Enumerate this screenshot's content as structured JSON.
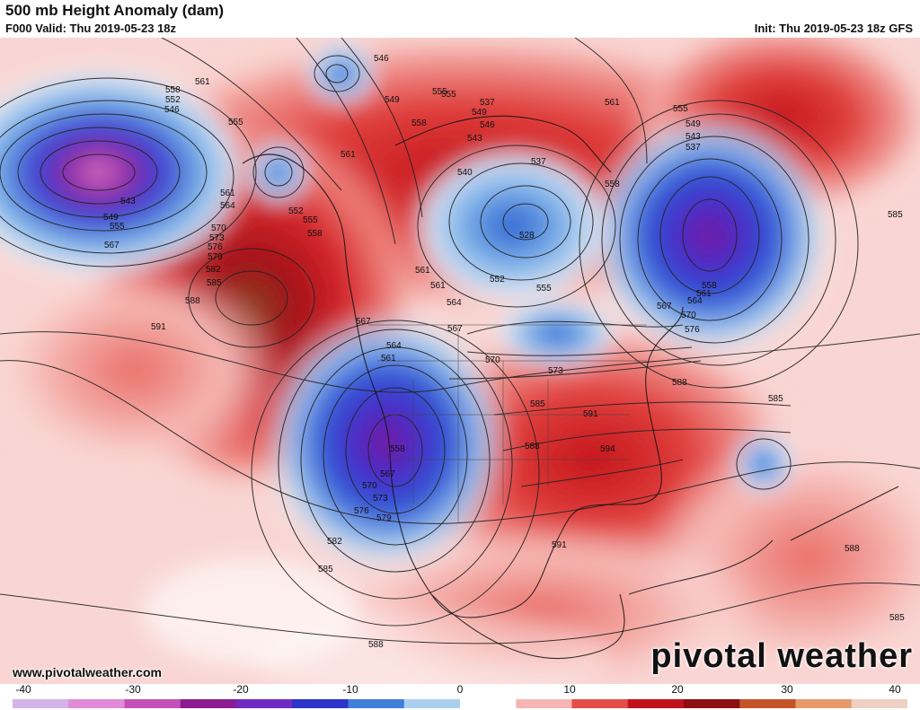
{
  "header": {
    "title": "500 mb Height Anomaly (dam)",
    "valid": "F000 Valid: Thu 2019-05-23 18z",
    "init": "Init: Thu 2019-05-23 18z GFS"
  },
  "footer": {
    "website": "www.pivotalweather.com",
    "brand": "pivotal weather"
  },
  "colorbar": {
    "ticks": [
      "-40",
      "-30",
      "-20",
      "-10",
      "0",
      "10",
      "20",
      "30",
      "40"
    ],
    "colors": [
      "#d3b4e6",
      "#e08ad8",
      "#c54fb8",
      "#8a1c8f",
      "#6d2bc2",
      "#2d34c9",
      "#3f7fd9",
      "#a9cfee",
      "#ffffff",
      "#f5b5b5",
      "#e54d47",
      "#c0111c",
      "#8e0e13",
      "#c45428",
      "#e69a6b",
      "#eed0c4"
    ]
  },
  "map": {
    "contour_labels": [
      {
        "text": "546"
      },
      {
        "text": "561"
      },
      {
        "text": "558"
      },
      {
        "text": "552"
      },
      {
        "text": "546"
      },
      {
        "text": "549"
      },
      {
        "text": "555"
      },
      {
        "text": "558"
      },
      {
        "text": "555"
      },
      {
        "text": "561"
      },
      {
        "text": "543"
      },
      {
        "text": "549"
      },
      {
        "text": "555"
      },
      {
        "text": "567"
      },
      {
        "text": "561"
      },
      {
        "text": "564"
      },
      {
        "text": "570"
      },
      {
        "text": "573"
      },
      {
        "text": "576"
      },
      {
        "text": "579"
      },
      {
        "text": "582"
      },
      {
        "text": "585"
      },
      {
        "text": "588"
      },
      {
        "text": "591"
      },
      {
        "text": "552"
      },
      {
        "text": "555"
      },
      {
        "text": "558"
      },
      {
        "text": "561"
      },
      {
        "text": "540"
      },
      {
        "text": "537"
      },
      {
        "text": "528"
      },
      {
        "text": "552"
      },
      {
        "text": "555"
      },
      {
        "text": "561"
      },
      {
        "text": "564"
      },
      {
        "text": "567"
      },
      {
        "text": "567"
      },
      {
        "text": "564"
      },
      {
        "text": "561"
      },
      {
        "text": "570"
      },
      {
        "text": "573"
      },
      {
        "text": "558"
      },
      {
        "text": "567"
      },
      {
        "text": "570"
      },
      {
        "text": "573"
      },
      {
        "text": "576"
      },
      {
        "text": "579"
      },
      {
        "text": "582"
      },
      {
        "text": "585"
      },
      {
        "text": "585"
      },
      {
        "text": "591"
      },
      {
        "text": "594"
      },
      {
        "text": "588"
      },
      {
        "text": "591"
      },
      {
        "text": "588"
      },
      {
        "text": "555"
      },
      {
        "text": "549"
      },
      {
        "text": "543"
      },
      {
        "text": "537"
      },
      {
        "text": "558"
      },
      {
        "text": "561"
      },
      {
        "text": "564"
      },
      {
        "text": "567"
      },
      {
        "text": "570"
      },
      {
        "text": "576"
      },
      {
        "text": "585"
      },
      {
        "text": "585"
      },
      {
        "text": "588"
      },
      {
        "text": "585"
      },
      {
        "text": "588"
      },
      {
        "text": "555"
      },
      {
        "text": "561"
      },
      {
        "text": "558"
      },
      {
        "text": "549"
      },
      {
        "text": "543"
      },
      {
        "text": "546"
      },
      {
        "text": "537"
      }
    ]
  }
}
